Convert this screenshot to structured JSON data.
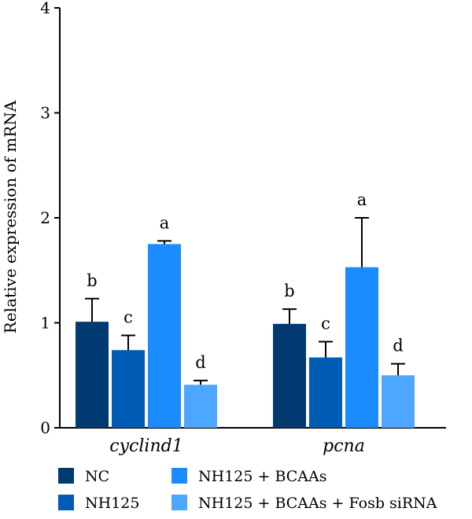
{
  "chart_data": {
    "type": "bar",
    "title": "",
    "xlabel": "",
    "ylabel": "Relative expression of mRNA",
    "ylim": [
      0,
      4
    ],
    "yticks": [
      "0",
      "1",
      "2",
      "3",
      "4"
    ],
    "categories": [
      "cyclind1",
      "pcna"
    ],
    "series": [
      {
        "name": "NC",
        "color": "#003a70",
        "values": [
          1.01,
          0.99
        ],
        "errors": [
          0.22,
          0.14
        ],
        "labels": [
          "b",
          "b"
        ]
      },
      {
        "name": "NH125",
        "color": "#005bb5",
        "values": [
          0.74,
          0.67
        ],
        "errors": [
          0.14,
          0.15
        ],
        "labels": [
          "c",
          "c"
        ]
      },
      {
        "name": "NH125 + BCAAs",
        "color": "#1a8cff",
        "values": [
          1.75,
          1.53
        ],
        "errors": [
          0.03,
          0.47
        ],
        "labels": [
          "a",
          "a"
        ]
      },
      {
        "name": "NH125 + BCAAs + Fosb siRNA",
        "color": "#4da6ff",
        "values": [
          0.41,
          0.5
        ],
        "errors": [
          0.04,
          0.11
        ],
        "labels": [
          "d",
          "d"
        ]
      }
    ],
    "grid": false,
    "legend_position": "bottom"
  }
}
